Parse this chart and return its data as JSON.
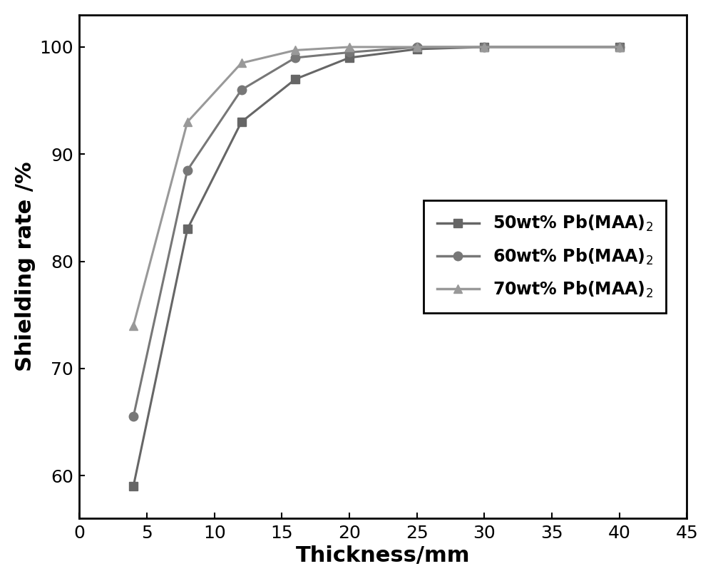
{
  "series": [
    {
      "label": "50wt% Pb(MAA)$_2$",
      "x": [
        4,
        8,
        12,
        16,
        20,
        25,
        30,
        40
      ],
      "y": [
        59,
        83,
        93,
        97,
        99,
        99.8,
        100,
        100
      ],
      "marker": "s",
      "color": "#666666",
      "linewidth": 2.2,
      "markersize": 9
    },
    {
      "label": "60wt% Pb(MAA)$_2$",
      "x": [
        4,
        8,
        12,
        16,
        20,
        25,
        30,
        40
      ],
      "y": [
        65.5,
        88.5,
        96,
        99,
        99.5,
        100,
        100,
        100
      ],
      "marker": "o",
      "color": "#777777",
      "linewidth": 2.2,
      "markersize": 9
    },
    {
      "label": "70wt% Pb(MAA)$_2$",
      "x": [
        4,
        8,
        12,
        16,
        20,
        25,
        30,
        40
      ],
      "y": [
        74,
        93,
        98.5,
        99.7,
        100,
        100,
        100,
        100
      ],
      "marker": "^",
      "color": "#999999",
      "linewidth": 2.2,
      "markersize": 9
    }
  ],
  "xlabel": "Thickness/mm",
  "ylabel": "Shielding rate /%",
  "xlim": [
    0,
    45
  ],
  "ylim": [
    56,
    103
  ],
  "xticks": [
    0,
    5,
    10,
    15,
    20,
    25,
    30,
    35,
    40,
    45
  ],
  "yticks": [
    60,
    70,
    80,
    90,
    100
  ],
  "xlabel_fontsize": 22,
  "ylabel_fontsize": 22,
  "tick_fontsize": 18,
  "legend_fontsize": 17,
  "figure_width": 10.0,
  "figure_height": 8.15,
  "background_color": "#ffffff"
}
